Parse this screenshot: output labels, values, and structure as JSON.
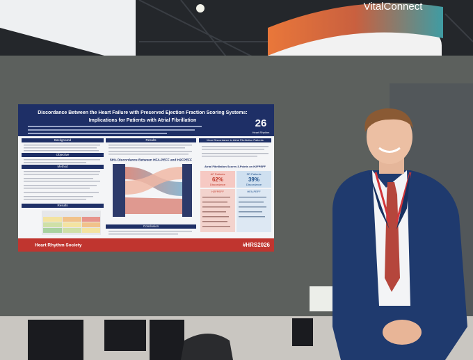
{
  "signage": {
    "brand": "VitalConnect"
  },
  "poster": {
    "title_lines": [
      "Discordance Between the Heart Failure with Preserved Ejection Fraction Scoring Systems:",
      "Implications for Patients with Atrial Fibrillation"
    ],
    "logo": "26",
    "logo_caption": "Heart Rhythm",
    "left_headings": [
      "Background",
      "Objective",
      "Method",
      "Results"
    ],
    "results_heading": "Results",
    "middle_heading": "56% Discordance Between HFA-PEFF and H2FPEFF",
    "conclusion_heading": "Conclusion",
    "right_heading": "More Discordance in Atrial Fibrillation Patients",
    "af_heading": "Atrial Fibrillation Scores 3-Points on H2FPEFF",
    "af_box": {
      "label": "AF Patients",
      "percent": "62%",
      "caption": "Discordance"
    },
    "sr_box": {
      "label": "SR Patients",
      "percent": "39%",
      "caption": "Discordance"
    },
    "score_labels": [
      "H2FPEFF",
      "HFA-PEFF"
    ],
    "footer_org": "Heart Rhythm Society",
    "hashtag": "#HRS2026"
  }
}
